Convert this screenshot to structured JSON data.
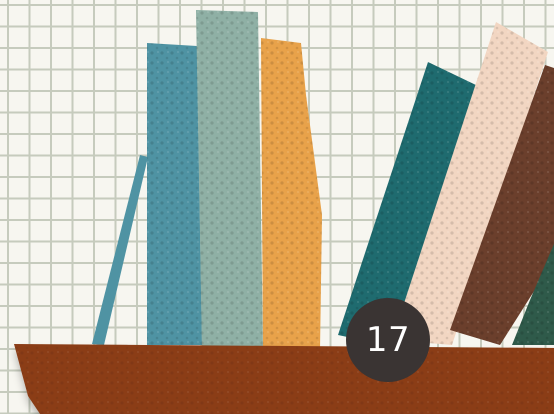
{
  "illustration": {
    "description_icon": "bookshelf-illustration",
    "background_color": "#f7f6f0",
    "grid_color": "#c6cbbd",
    "books": [
      {
        "name": "teal-book",
        "color": "#4f93a3"
      },
      {
        "name": "sage-book",
        "color": "#8fb0a5"
      },
      {
        "name": "orange-book",
        "color": "#e8a24a"
      },
      {
        "name": "dark-teal-book",
        "color": "#1f6b6f"
      },
      {
        "name": "cream-book",
        "color": "#f2d6c2"
      },
      {
        "name": "brown-book",
        "color": "#6b3f2c"
      },
      {
        "name": "green-book",
        "color": "#2f5a4a"
      }
    ],
    "leaning_stick_color": "#4f93a3",
    "shelf_color": "#8b3e18"
  },
  "badge": {
    "number": "17",
    "background": "#3a3433"
  }
}
